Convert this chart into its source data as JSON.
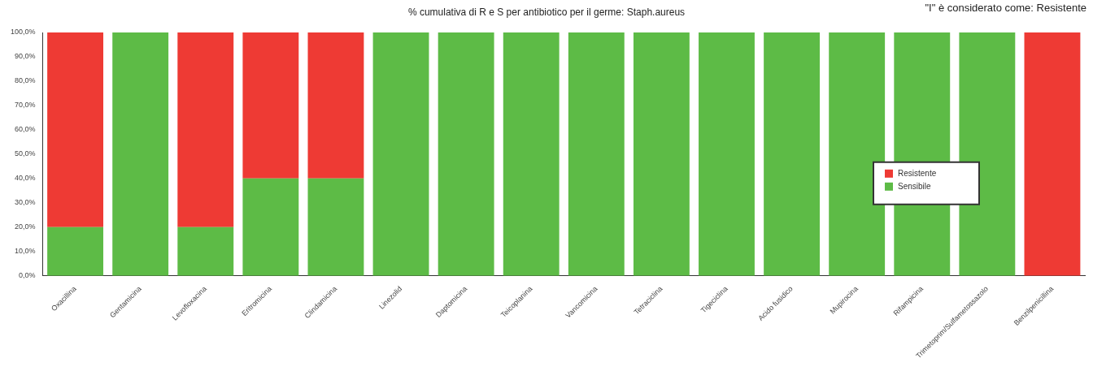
{
  "chart_data": {
    "type": "bar",
    "title": "% cumulativa di R e S per antibiotico per il germe: Staph.aureus",
    "annotations": [
      "\"I\" è considerato come: Resistente"
    ],
    "categories": [
      "Oxacillina",
      "Gentamicina",
      "Levofloxacina",
      "Eritromicina",
      "Clindamicina",
      "Linezolid",
      "Daptomicina",
      "Teicoplanina",
      "Vancomicina",
      "Tetraciclina",
      "Tigeciclina",
      "Acido fusidico",
      "Mupirocina",
      "Rifampicina",
      "Trimetoprim/Sulfametossazolo",
      "Benzilpenicillina"
    ],
    "stacked": true,
    "series": [
      {
        "name": "Sensibile",
        "color": "#5dbb46",
        "values": [
          20,
          100,
          20,
          40,
          40,
          100,
          100,
          100,
          100,
          100,
          100,
          100,
          100,
          100,
          100,
          0
        ]
      },
      {
        "name": "Resistente",
        "color": "#ee3a34",
        "values": [
          80,
          0,
          80,
          60,
          60,
          0,
          0,
          0,
          0,
          0,
          0,
          0,
          0,
          0,
          0,
          100
        ]
      }
    ],
    "ylim": [
      0,
      100
    ],
    "yticks": [
      {
        "value": 0,
        "label": "0,0%"
      },
      {
        "value": 10,
        "label": "10,0%"
      },
      {
        "value": 20,
        "label": "20,0%"
      },
      {
        "value": 30,
        "label": "30,0%"
      },
      {
        "value": 40,
        "label": "40,0%"
      },
      {
        "value": 50,
        "label": "50,0%"
      },
      {
        "value": 60,
        "label": "60,0%"
      },
      {
        "value": 70,
        "label": "70,0%"
      },
      {
        "value": 80,
        "label": "80,0%"
      },
      {
        "value": 90,
        "label": "90,0%"
      },
      {
        "value": 100,
        "label": "100,0%"
      }
    ],
    "grid": false,
    "legend": "right"
  }
}
